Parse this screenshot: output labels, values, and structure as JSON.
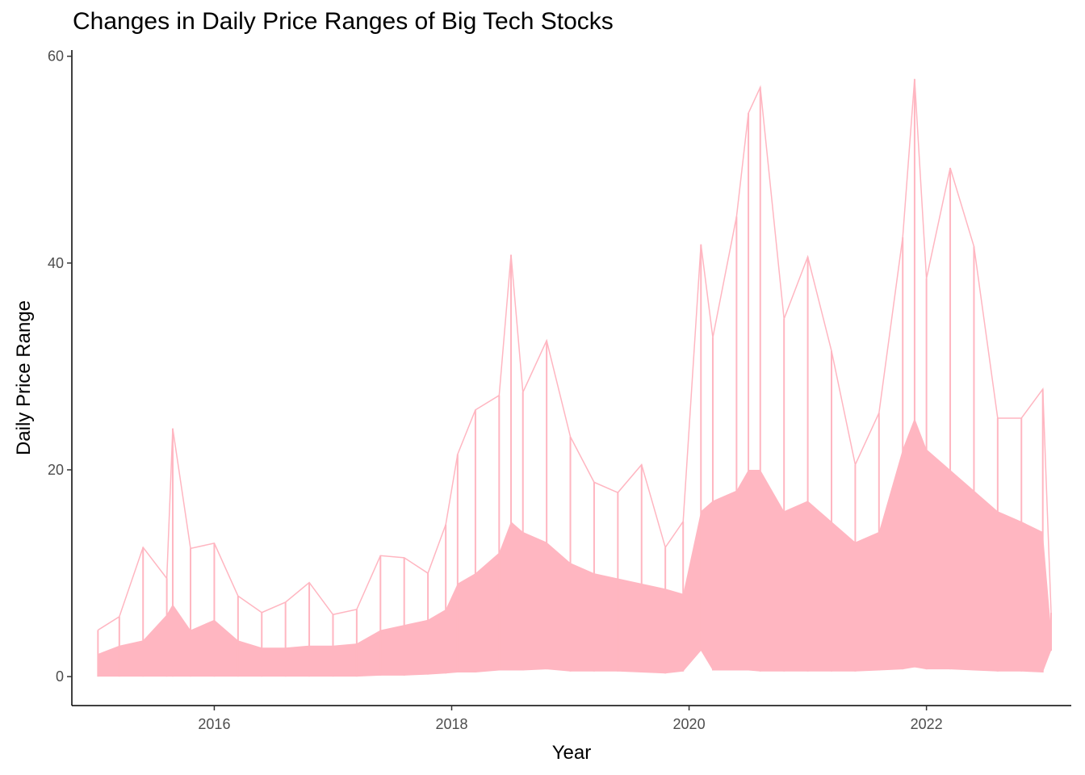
{
  "chart_data": {
    "type": "area",
    "title": "Changes in Daily Price Ranges of Big Tech Stocks",
    "xlabel": "Year",
    "ylabel": "Daily Price Range",
    "x_ticks": [
      2016,
      2018,
      2020,
      2022
    ],
    "y_ticks": [
      0,
      20,
      40,
      60
    ],
    "xlim": [
      2014.8,
      2023.22
    ],
    "ylim": [
      -2.8,
      60.6
    ],
    "grid": false,
    "legend": "none",
    "color": "#ffb6c1",
    "series": [
      {
        "x": [
          2015.02,
          2015.2,
          2015.4,
          2015.6,
          2015.65,
          2015.8,
          2016.0,
          2016.2,
          2016.4,
          2016.6,
          2016.8,
          2017.0,
          2017.2,
          2017.4,
          2017.6,
          2017.8,
          2017.95,
          2018.05,
          2018.2,
          2018.4,
          2018.5,
          2018.6,
          2018.8,
          2019.0,
          2019.2,
          2019.4,
          2019.6,
          2019.8,
          2019.95,
          2020.1,
          2020.2,
          2020.4,
          2020.5,
          2020.6,
          2020.8,
          2021.0,
          2021.2,
          2021.4,
          2021.6,
          2021.8,
          2021.9,
          2022.0,
          2022.2,
          2022.4,
          2022.6,
          2022.8,
          2022.98,
          2023.05
        ],
        "high": [
          4.5,
          5.8,
          12.5,
          9.5,
          24.0,
          12.4,
          12.9,
          7.8,
          6.2,
          7.2,
          9.1,
          6.0,
          6.5,
          11.7,
          11.5,
          10.0,
          14.7,
          21.5,
          25.8,
          27.2,
          40.8,
          27.5,
          32.5,
          23.2,
          18.8,
          17.8,
          20.5,
          12.5,
          15.0,
          41.8,
          32.8,
          44.5,
          54.5,
          57.0,
          34.6,
          40.6,
          31.5,
          20.5,
          25.5,
          42.5,
          57.8,
          38.5,
          49.2,
          41.6,
          25.0,
          25.0,
          27.8,
          6.2
        ],
        "upper": [
          2.2,
          3.0,
          3.5,
          6.0,
          7.0,
          4.5,
          5.5,
          3.5,
          2.8,
          2.8,
          3.0,
          3.0,
          3.2,
          4.5,
          5.0,
          5.5,
          6.5,
          9.0,
          10.0,
          12.0,
          15.0,
          14.0,
          13.0,
          11.0,
          10.0,
          9.5,
          9.0,
          8.5,
          8.0,
          16.0,
          17.0,
          18.0,
          20.0,
          20.0,
          16.0,
          17.0,
          15.0,
          13.0,
          14.0,
          22.0,
          25.0,
          22.0,
          20.0,
          18.0,
          16.0,
          15.0,
          14.0,
          4.5
        ],
        "low": [
          0.0,
          0.0,
          0.0,
          0.0,
          0.0,
          0.0,
          0.0,
          0.0,
          0.0,
          0.0,
          0.0,
          0.0,
          0.0,
          0.1,
          0.1,
          0.2,
          0.3,
          0.4,
          0.4,
          0.6,
          0.6,
          0.6,
          0.7,
          0.5,
          0.5,
          0.5,
          0.4,
          0.3,
          0.5,
          2.5,
          0.6,
          0.6,
          0.6,
          0.5,
          0.5,
          0.5,
          0.5,
          0.5,
          0.6,
          0.7,
          0.9,
          0.7,
          0.7,
          0.6,
          0.5,
          0.5,
          0.4,
          2.5
        ]
      }
    ]
  }
}
